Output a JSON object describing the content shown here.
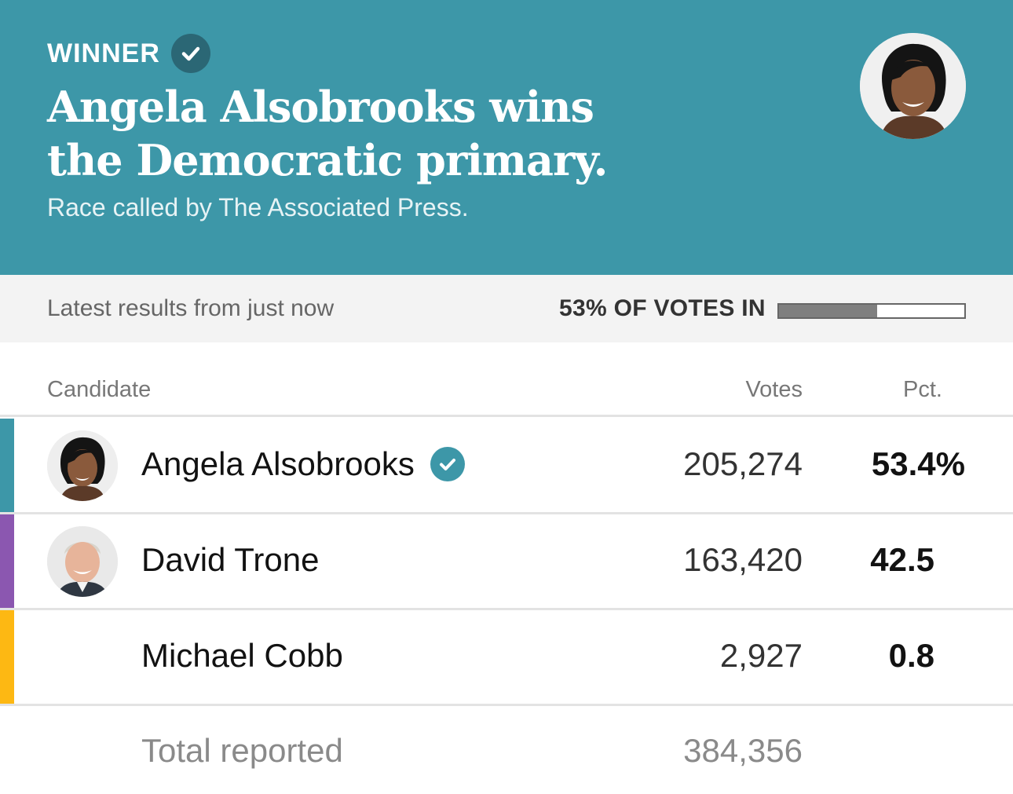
{
  "banner": {
    "winner_label": "WINNER",
    "headline": "Angela Alsobrooks wins the Democratic primary.",
    "called_by": "Race called by The Associated Press.",
    "background_color": "#3d97a8",
    "winner_icon": "check-circle-icon"
  },
  "status": {
    "latest_text": "Latest results from just now",
    "votes_in_text": "53% OF VOTES IN",
    "votes_in_fraction": 0.53
  },
  "table": {
    "headers": {
      "candidate": "Candidate",
      "votes": "Votes",
      "pct": "Pct."
    },
    "rows": [
      {
        "name": "Angela Alsobrooks",
        "votes": "205,274",
        "pct": "53.4%",
        "winner": true,
        "party_color": "#3d97a8",
        "has_photo": true
      },
      {
        "name": "David Trone",
        "votes": "163,420",
        "pct": "42.5",
        "winner": false,
        "party_color": "#8b57b0",
        "has_photo": true
      },
      {
        "name": "Michael Cobb",
        "votes": "2,927",
        "pct": "0.8",
        "winner": false,
        "party_color": "#fdb813",
        "has_photo": false
      }
    ],
    "total": {
      "label": "Total reported",
      "votes": "384,356"
    }
  }
}
